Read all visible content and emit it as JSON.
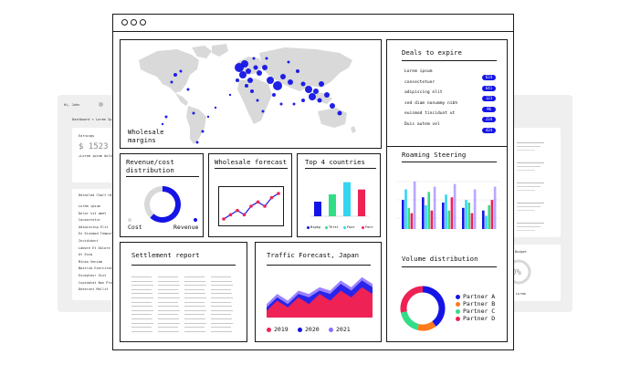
{
  "background_window_left": {
    "greeting": "Hi, John",
    "breadcrumb": "Dashboard > Lorem Ip",
    "card_title": "Earnings",
    "amount": "$ 1523",
    "amount_note": "+Lorem ipsum dolor",
    "list_title": "Detailed Chart Hi",
    "list_items": [
      "Lorem ipsum",
      "Dolor sit amet",
      "Consectetur",
      "Adipiscing Elit",
      "Ex Eiusmod Tempor",
      "Incididunt",
      "Labore Et Dolore",
      "Ut Enim",
      "Minim Veniam",
      "Nostrud Exercitatio",
      "Excepteur Sint",
      "Cupidatat Non Proid",
      "Deserunt Mollit"
    ]
  },
  "background_window_right": {
    "card_title": "Budget",
    "gauge_value": "0%",
    "gauge_caption": "Lorem"
  },
  "window": {
    "controls": [
      "dot",
      "dot",
      "dot"
    ]
  },
  "map_panel": {
    "title": "Wholesale\nmargins"
  },
  "revenue_panel": {
    "title": "Revenue/cost\ndistribution",
    "label_cost": "Cost",
    "label_revenue": "Revenue",
    "revenue_share": 0.62
  },
  "forecast_panel": {
    "title": "Wholesale forecast"
  },
  "countries_panel": {
    "title": "Top 4 countries",
    "legend": [
      "Bigkg",
      "Thrsl",
      "Foor",
      "Fonr"
    ]
  },
  "settlement_panel": {
    "title": "Settlement report"
  },
  "traffic_panel": {
    "title": "Traffic Forecast, Japan",
    "legend": [
      "2019",
      "2020",
      "2021"
    ]
  },
  "deals_panel": {
    "title": "Deals to expire",
    "rows": [
      {
        "label": "Lorem ipsum",
        "badge": "624"
      },
      {
        "label": "consectetuer",
        "badge": "641"
      },
      {
        "label": "adipiscing elit",
        "badge": "123"
      },
      {
        "label": "sed diam nonummy nibh",
        "badge": "96"
      },
      {
        "label": "euismod tincidunt ut",
        "badge": "224"
      },
      {
        "label": "Duis autem vel",
        "badge": "424"
      }
    ]
  },
  "roaming_panel": {
    "title": "Roaming Steering"
  },
  "volume_panel": {
    "title": "Volume distribution",
    "legend": [
      "Partner A",
      "Partner B",
      "Partner C",
      "Partner D"
    ]
  },
  "colors": {
    "blue": "#1414e6",
    "red": "#ee2255",
    "cyan": "#33d6f0",
    "green": "#33dd88",
    "orange": "#ff7a1a",
    "purple": "#8a6cff",
    "map_land": "#d9d9d9"
  },
  "chart_data": [
    {
      "type": "pie",
      "title": "Revenue/cost distribution",
      "categories": [
        "Cost",
        "Revenue"
      ],
      "values": [
        38,
        62
      ]
    },
    {
      "type": "line",
      "title": "Wholesale forecast",
      "series": [
        {
          "values": [
            3,
            4,
            5,
            4,
            6,
            7,
            6,
            8,
            9
          ]
        }
      ]
    },
    {
      "type": "bar",
      "title": "Top 4 countries",
      "categories": [
        "Bigkg",
        "Thrsl",
        "Foor",
        "Fonr"
      ],
      "values": [
        30,
        45,
        70,
        55
      ]
    },
    {
      "type": "area",
      "title": "Traffic Forecast, Japan",
      "series": [
        {
          "name": "2019",
          "values": [
            2,
            5,
            3,
            6,
            4,
            7,
            5,
            8,
            6,
            9,
            7
          ]
        },
        {
          "name": "2020",
          "values": [
            3,
            6,
            4,
            7,
            6,
            8,
            7,
            10,
            8,
            11,
            9
          ]
        },
        {
          "name": "2021",
          "values": [
            4,
            7,
            5,
            8,
            7,
            9,
            8,
            11,
            9,
            12,
            10
          ]
        }
      ]
    },
    {
      "type": "bar",
      "title": "Roaming Steering",
      "series": [
        {
          "values": [
            55,
            60,
            50,
            40,
            35
          ]
        },
        {
          "values": [
            75,
            45,
            65,
            55,
            25
          ]
        },
        {
          "values": [
            40,
            70,
            35,
            50,
            45
          ]
        },
        {
          "values": [
            30,
            35,
            60,
            30,
            55
          ]
        },
        {
          "values": [
            90,
            80,
            85,
            75,
            80
          ]
        }
      ]
    },
    {
      "type": "pie",
      "title": "Volume distribution",
      "categories": [
        "Partner A",
        "Partner B",
        "Partner C",
        "Partner D"
      ],
      "values": [
        40,
        14,
        18,
        28
      ]
    }
  ]
}
